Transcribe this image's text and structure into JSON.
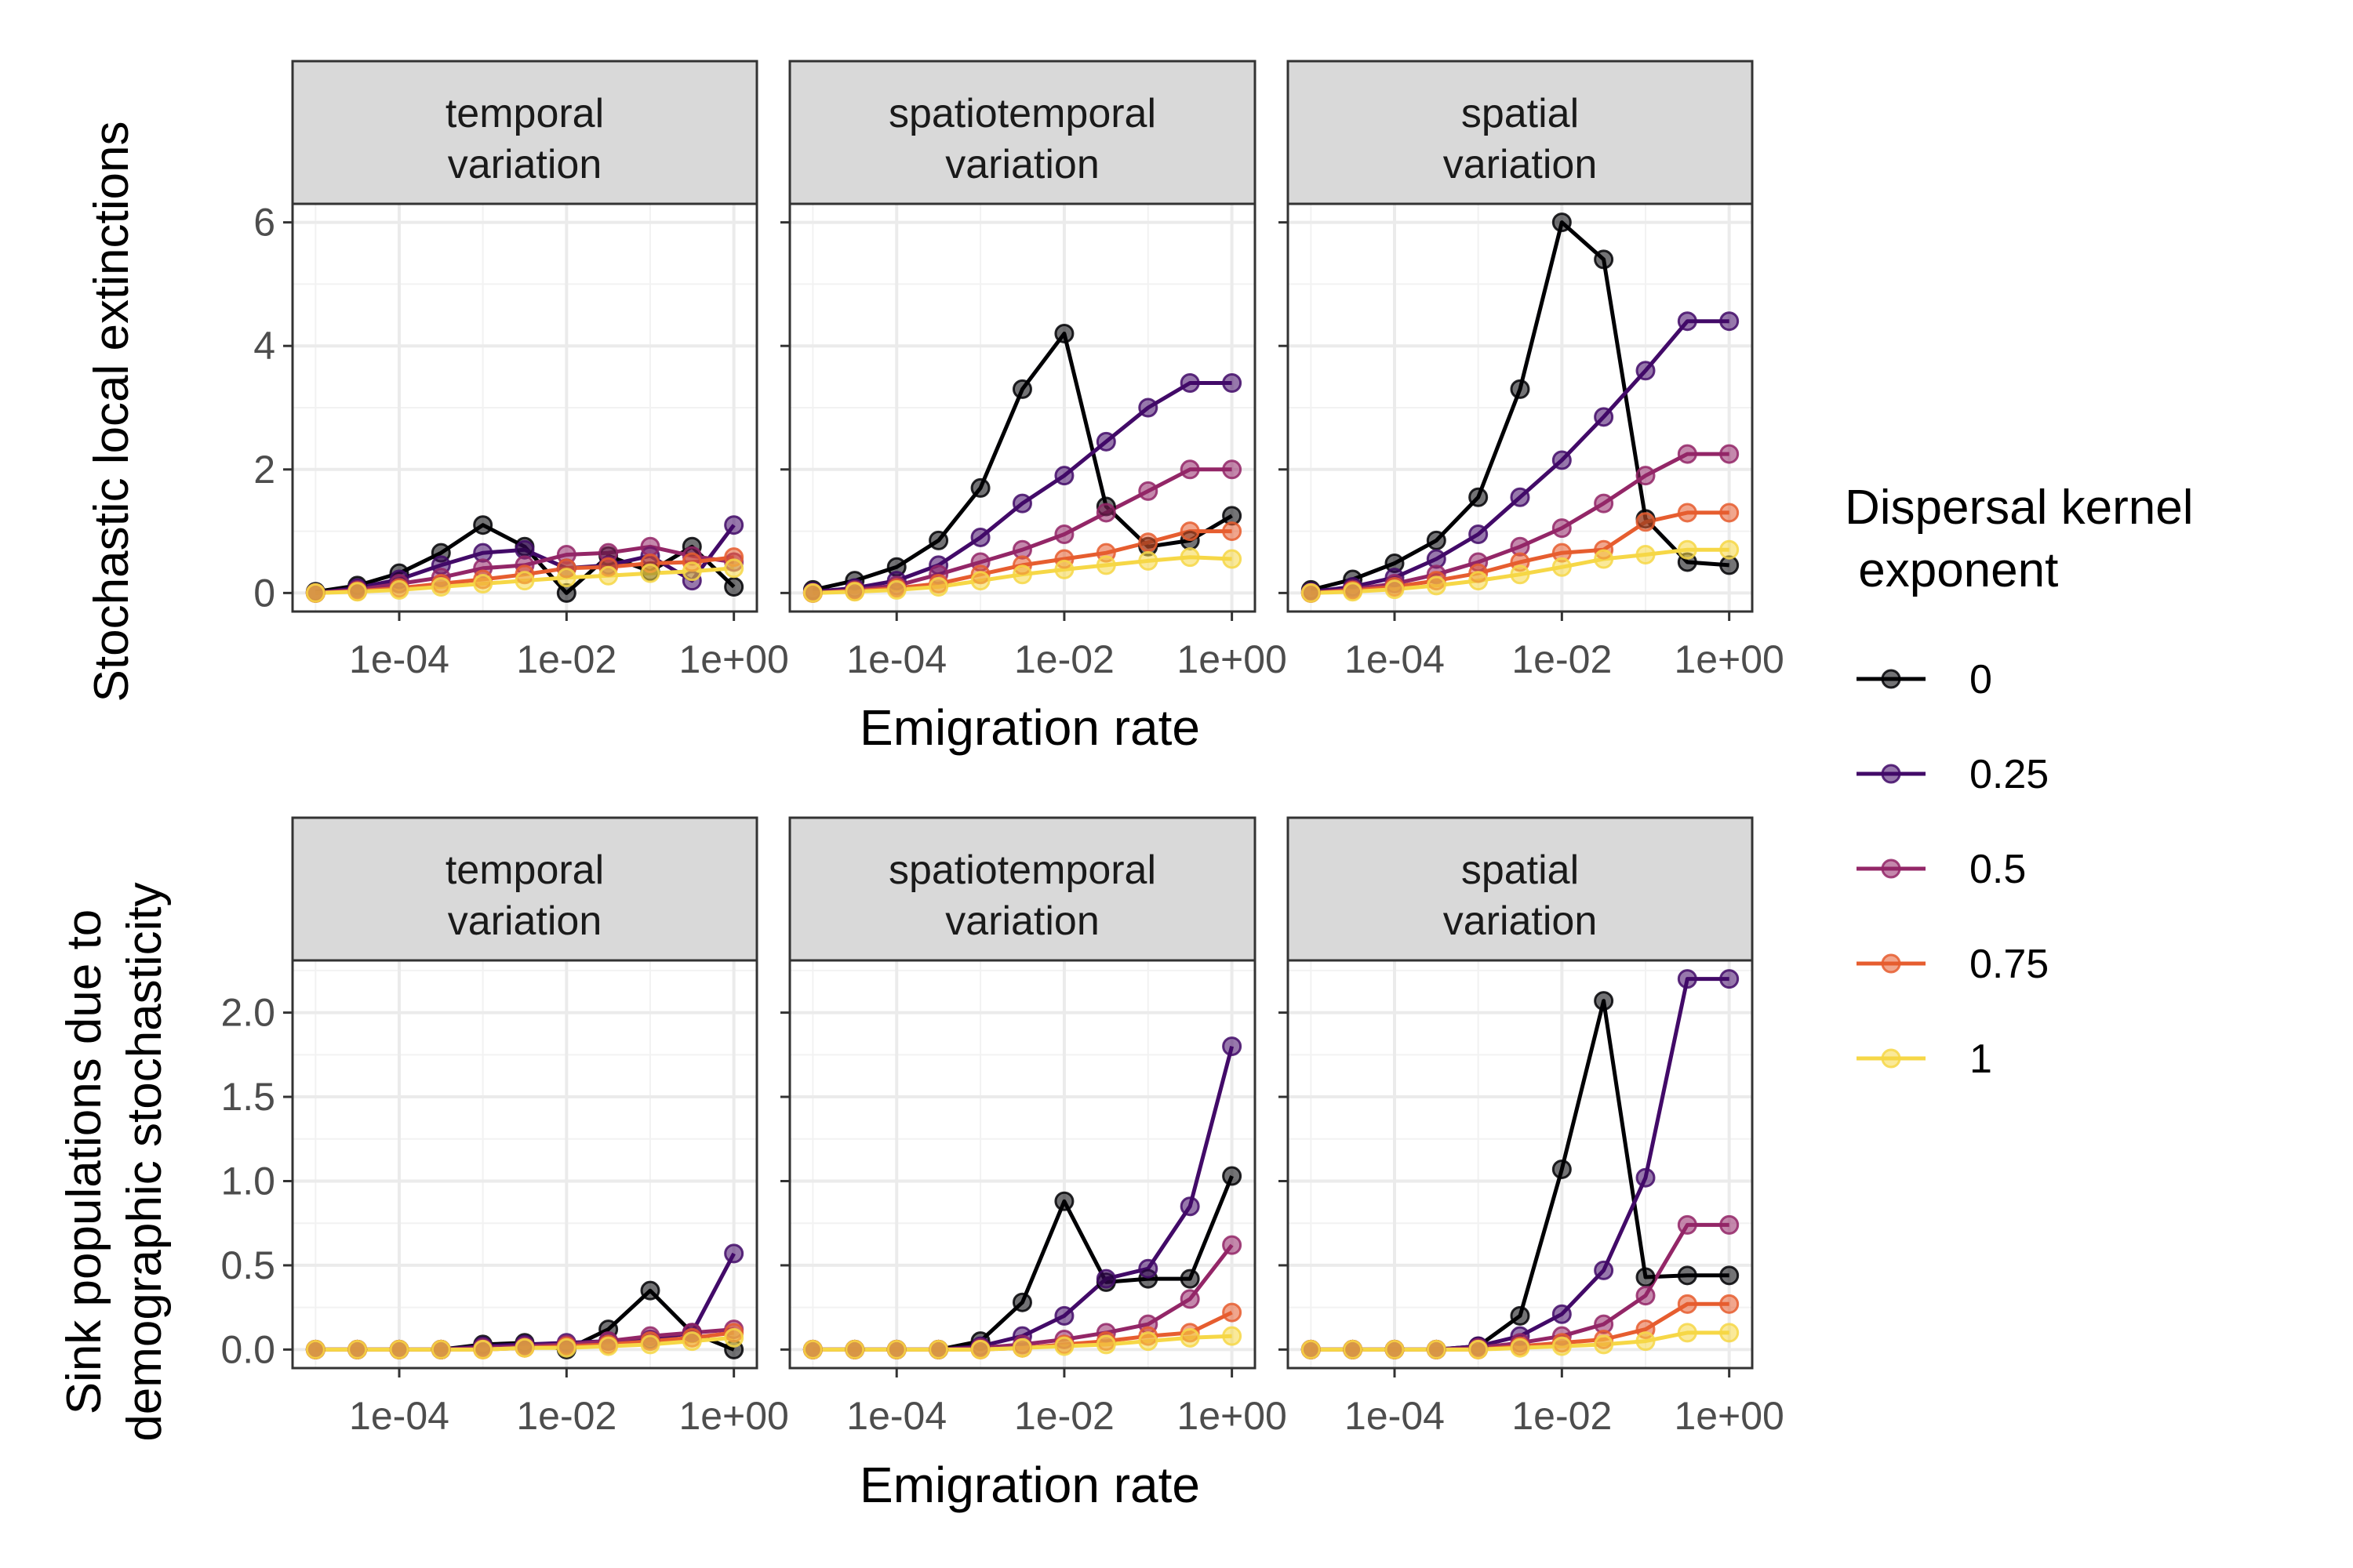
{
  "x_ticks": [
    "1e-04",
    "1e-02",
    "1e+00"
  ],
  "x_tick_values": [
    0.0001,
    0.01,
    1
  ],
  "xlabel": "Emigration rate",
  "ylabel_top": "Stochastic local extinctions",
  "ylabel_bottom_line1": "Sink populations due to",
  "ylabel_bottom_line2": "demographic stochasticity",
  "strips": [
    {
      "line1": "temporal",
      "line2": "variation"
    },
    {
      "line1": "spatiotemporal",
      "line2": "variation"
    },
    {
      "line1": "spatial",
      "line2": "variation"
    }
  ],
  "legend": {
    "title_line1": "Dispersal kernel",
    "title_line2": " exponent",
    "labels": [
      "0",
      "0.25",
      "0.5",
      "0.75",
      "1"
    ]
  },
  "colors": [
    "#000004",
    "#420A68",
    "#932667",
    "#E65D2F",
    "#F6D746"
  ],
  "chart_data": [
    {
      "type": "line",
      "row": "Stochastic local extinctions",
      "ylim": [
        -0.3,
        6.3
      ],
      "yticks": [
        0,
        2,
        4,
        6
      ],
      "x": [
        1e-05,
        3.16e-05,
        0.0001,
        0.000316,
        0.001,
        0.00316,
        0.01,
        0.0316,
        0.1,
        0.316,
        1
      ],
      "panels": [
        {
          "strip": "temporal variation",
          "series": [
            {
              "name": "0",
              "values": [
                0.02,
                0.12,
                0.32,
                0.65,
                1.1,
                0.75,
                0.0,
                0.6,
                0.35,
                0.75,
                0.1
              ]
            },
            {
              "name": "0.25",
              "values": [
                0.0,
                0.08,
                0.22,
                0.45,
                0.65,
                0.7,
                0.4,
                0.45,
                0.6,
                0.2,
                1.1
              ]
            },
            {
              "name": "0.5",
              "values": [
                0.0,
                0.05,
                0.15,
                0.25,
                0.4,
                0.45,
                0.62,
                0.65,
                0.75,
                0.6,
                0.5
              ]
            },
            {
              "name": "0.75",
              "values": [
                0.0,
                0.03,
                0.08,
                0.15,
                0.22,
                0.3,
                0.4,
                0.42,
                0.48,
                0.5,
                0.58
              ]
            },
            {
              "name": "1",
              "values": [
                0.0,
                0.02,
                0.05,
                0.1,
                0.15,
                0.2,
                0.25,
                0.28,
                0.32,
                0.35,
                0.4
              ]
            }
          ]
        },
        {
          "strip": "spatiotemporal variation",
          "series": [
            {
              "name": "0",
              "values": [
                0.05,
                0.2,
                0.42,
                0.85,
                1.7,
                3.3,
                4.2,
                1.4,
                0.75,
                0.85,
                1.25
              ]
            },
            {
              "name": "0.25",
              "values": [
                0.02,
                0.08,
                0.2,
                0.45,
                0.9,
                1.45,
                1.9,
                2.45,
                3.0,
                3.4,
                3.4
              ]
            },
            {
              "name": "0.5",
              "values": [
                0.0,
                0.05,
                0.12,
                0.3,
                0.5,
                0.7,
                0.95,
                1.3,
                1.65,
                2.0,
                2.0
              ]
            },
            {
              "name": "0.75",
              "values": [
                0.0,
                0.03,
                0.08,
                0.15,
                0.3,
                0.45,
                0.55,
                0.65,
                0.82,
                1.0,
                1.0
              ]
            },
            {
              "name": "1",
              "values": [
                0.0,
                0.02,
                0.05,
                0.1,
                0.2,
                0.3,
                0.38,
                0.45,
                0.52,
                0.58,
                0.55
              ]
            }
          ]
        },
        {
          "strip": "spatial variation",
          "series": [
            {
              "name": "0",
              "values": [
                0.05,
                0.22,
                0.48,
                0.85,
                1.55,
                3.3,
                6.0,
                5.4,
                1.2,
                0.5,
                0.45
              ]
            },
            {
              "name": "0.25",
              "values": [
                0.02,
                0.1,
                0.25,
                0.55,
                0.95,
                1.55,
                2.15,
                2.85,
                3.6,
                4.4,
                4.4
              ]
            },
            {
              "name": "0.5",
              "values": [
                0.0,
                0.06,
                0.15,
                0.3,
                0.5,
                0.75,
                1.05,
                1.45,
                1.9,
                2.25,
                2.25
              ]
            },
            {
              "name": "0.75",
              "values": [
                0.0,
                0.04,
                0.1,
                0.2,
                0.32,
                0.5,
                0.65,
                0.7,
                1.15,
                1.3,
                1.3
              ]
            },
            {
              "name": "1",
              "values": [
                0.0,
                0.02,
                0.06,
                0.12,
                0.2,
                0.3,
                0.42,
                0.55,
                0.62,
                0.7,
                0.7
              ]
            }
          ]
        }
      ]
    },
    {
      "type": "line",
      "row": "Sink populations due to demographic stochasticity",
      "ylim": [
        -0.11,
        2.31
      ],
      "yticks": [
        0.0,
        0.5,
        1.0,
        1.5,
        2.0
      ],
      "ytick_labels": [
        "0.0",
        "0.5",
        "1.0",
        "1.5",
        "2.0"
      ],
      "x": [
        1e-05,
        3.16e-05,
        0.0001,
        0.000316,
        0.001,
        0.00316,
        0.01,
        0.0316,
        0.1,
        0.316,
        1
      ],
      "panels": [
        {
          "strip": "temporal variation",
          "series": [
            {
              "name": "0",
              "values": [
                0.0,
                0.0,
                0.0,
                0.0,
                0.03,
                0.04,
                0.0,
                0.12,
                0.35,
                0.1,
                0.0
              ]
            },
            {
              "name": "0.25",
              "values": [
                0.0,
                0.0,
                0.0,
                0.0,
                0.02,
                0.03,
                0.04,
                0.05,
                0.06,
                0.1,
                0.57
              ]
            },
            {
              "name": "0.5",
              "values": [
                0.0,
                0.0,
                0.0,
                0.0,
                0.01,
                0.02,
                0.03,
                0.05,
                0.08,
                0.1,
                0.12
              ]
            },
            {
              "name": "0.75",
              "values": [
                0.0,
                0.0,
                0.0,
                0.0,
                0.0,
                0.01,
                0.02,
                0.03,
                0.05,
                0.07,
                0.1
              ]
            },
            {
              "name": "1",
              "values": [
                0.0,
                0.0,
                0.0,
                0.0,
                0.0,
                0.01,
                0.01,
                0.02,
                0.03,
                0.05,
                0.07
              ]
            }
          ]
        },
        {
          "strip": "spatiotemporal variation",
          "series": [
            {
              "name": "0",
              "values": [
                0.0,
                0.0,
                0.0,
                0.0,
                0.05,
                0.28,
                0.88,
                0.4,
                0.42,
                0.42,
                1.03
              ]
            },
            {
              "name": "0.25",
              "values": [
                0.0,
                0.0,
                0.0,
                0.0,
                0.02,
                0.08,
                0.2,
                0.42,
                0.48,
                0.85,
                1.8
              ]
            },
            {
              "name": "0.5",
              "values": [
                0.0,
                0.0,
                0.0,
                0.0,
                0.01,
                0.03,
                0.06,
                0.1,
                0.15,
                0.3,
                0.62
              ]
            },
            {
              "name": "0.75",
              "values": [
                0.0,
                0.0,
                0.0,
                0.0,
                0.0,
                0.01,
                0.03,
                0.05,
                0.08,
                0.1,
                0.22
              ]
            },
            {
              "name": "1",
              "values": [
                0.0,
                0.0,
                0.0,
                0.0,
                0.0,
                0.01,
                0.02,
                0.03,
                0.05,
                0.07,
                0.08
              ]
            }
          ]
        },
        {
          "strip": "spatial variation",
          "series": [
            {
              "name": "0",
              "values": [
                0.0,
                0.0,
                0.0,
                0.0,
                0.02,
                0.2,
                1.07,
                2.07,
                0.43,
                0.44,
                0.44
              ]
            },
            {
              "name": "0.25",
              "values": [
                0.0,
                0.0,
                0.0,
                0.0,
                0.02,
                0.08,
                0.21,
                0.47,
                1.02,
                2.2,
                2.2
              ]
            },
            {
              "name": "0.5",
              "values": [
                0.0,
                0.0,
                0.0,
                0.0,
                0.01,
                0.04,
                0.08,
                0.15,
                0.32,
                0.74,
                0.74
              ]
            },
            {
              "name": "0.75",
              "values": [
                0.0,
                0.0,
                0.0,
                0.0,
                0.0,
                0.02,
                0.04,
                0.06,
                0.12,
                0.27,
                0.27
              ]
            },
            {
              "name": "1",
              "values": [
                0.0,
                0.0,
                0.0,
                0.0,
                0.0,
                0.01,
                0.02,
                0.03,
                0.05,
                0.1,
                0.1
              ]
            }
          ]
        }
      ]
    }
  ]
}
